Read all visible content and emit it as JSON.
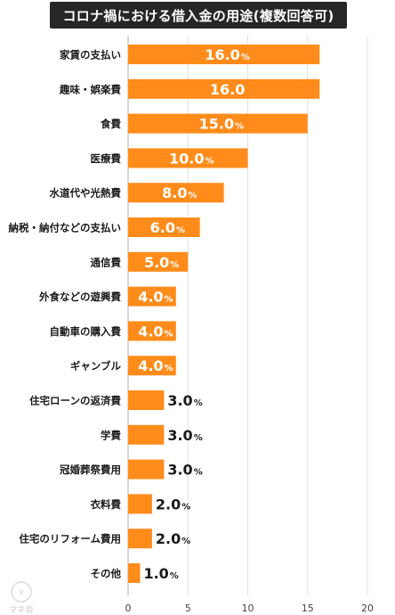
{
  "chart_data": {
    "type": "bar",
    "orientation": "horizontal",
    "title": "コロナ禍における借入金の用途(複数回答可)",
    "categories": [
      "家賃の支払い",
      "趣味・娯楽費",
      "食費",
      "医療費",
      "水道代や光熱費",
      "納税・納付などの支払い",
      "通信費",
      "外食などの遊興費",
      "自動車の購入費",
      "ギャンブル",
      "住宅ローンの返済費",
      "学費",
      "冠婚葬祭費用",
      "衣料費",
      "住宅のリフォーム費用",
      "その他"
    ],
    "values": [
      16.0,
      16.0,
      15.0,
      10.0,
      8.0,
      6.0,
      5.0,
      4.0,
      4.0,
      4.0,
      3.0,
      3.0,
      3.0,
      2.0,
      2.0,
      1.0
    ],
    "value_labels": [
      "16.0",
      "16.0",
      "15.0",
      "10.0",
      "8.0",
      "6.0",
      "5.0",
      "4.0",
      "4.0",
      "4.0",
      "3.0",
      "3.0",
      "3.0",
      "2.0",
      "2.0",
      "1.0"
    ],
    "value_units": [
      "%",
      "",
      "%",
      "%",
      "%",
      "%",
      "%",
      "%",
      "%",
      "%",
      "%",
      "%",
      "%",
      "%",
      "%",
      "%"
    ],
    "xlim": [
      0,
      22
    ],
    "xticks": [
      0,
      5,
      10,
      15,
      20
    ],
    "grid": true,
    "bar_color": "#ff8c1a",
    "label_inside_color": "#ffffff",
    "label_outside_color": "#1a1a1a"
  },
  "watermark": {
    "text": "マネ会",
    "icon": "money-face-icon"
  }
}
